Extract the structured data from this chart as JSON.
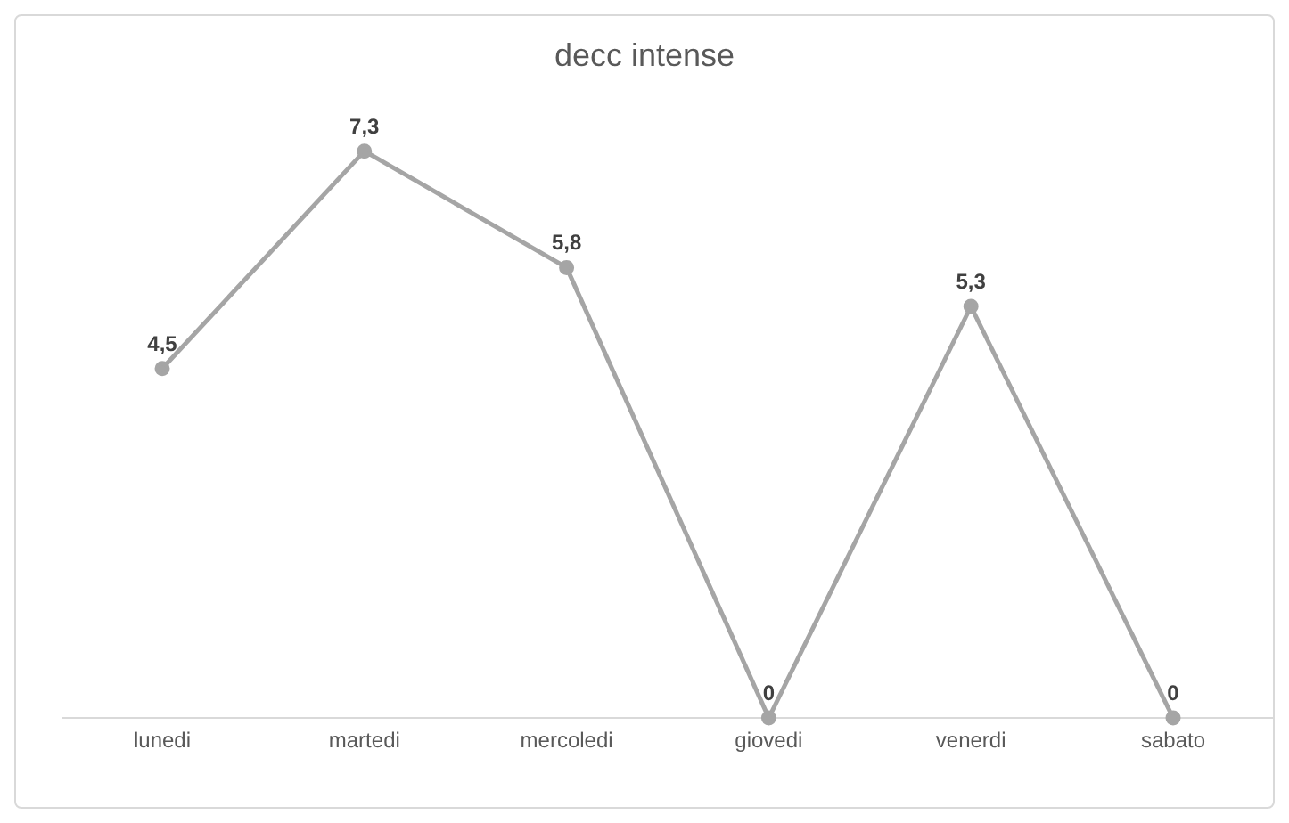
{
  "chart_data": {
    "type": "line",
    "title": "decc intense",
    "categories": [
      "lunedi",
      "martedi",
      "mercoledi",
      "giovedi",
      "venerdi",
      "sabato"
    ],
    "series": [
      {
        "color": "#a5a5a5",
        "values": [
          4.5,
          7.3,
          5.8,
          0,
          5.3,
          0
        ],
        "value_labels": [
          "4,5",
          "7,3",
          "5,8",
          "0",
          "5,3",
          "0"
        ]
      }
    ],
    "marker": "circle",
    "grid": false,
    "legend": false
  }
}
